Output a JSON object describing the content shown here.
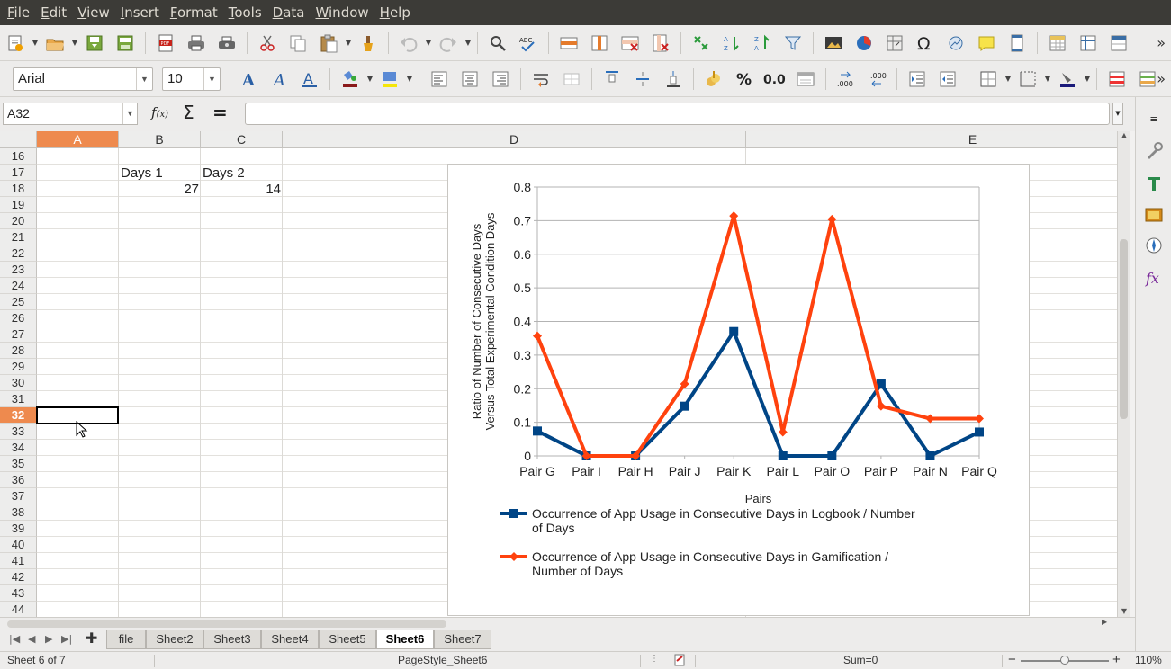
{
  "menu": {
    "items": [
      {
        "label": "File",
        "accel": "F",
        "rest": "ile"
      },
      {
        "label": "Edit",
        "accel": "E",
        "rest": "dit"
      },
      {
        "label": "View",
        "accel": "V",
        "rest": "iew"
      },
      {
        "label": "Insert",
        "accel": "I",
        "rest": "nsert"
      },
      {
        "label": "Format",
        "accel": "F",
        "rest": "ormat",
        "pre": ""
      },
      {
        "label": "Tools",
        "accel": "T",
        "rest": "ools"
      },
      {
        "label": "Data",
        "accel": "D",
        "rest": "ata"
      },
      {
        "label": "Window",
        "accel": "W",
        "rest": "indow"
      },
      {
        "label": "Help",
        "accel": "H",
        "rest": "elp"
      }
    ]
  },
  "format_toolbar": {
    "font_name": "Arial",
    "font_size": "10"
  },
  "formula_bar": {
    "name_box": "A32",
    "formula": "",
    "fx_icon": "function-wizard-icon",
    "sum_icon": "sum-icon",
    "equals": "="
  },
  "grid": {
    "columns": [
      "A",
      "B",
      "C",
      "D",
      "E"
    ],
    "selected_column": "A",
    "rows": [
      "16",
      "17",
      "18",
      "19",
      "20",
      "21",
      "22",
      "23",
      "24",
      "25",
      "26",
      "27",
      "28",
      "29",
      "30",
      "31",
      "32",
      "33",
      "34",
      "35",
      "36",
      "37",
      "38",
      "39",
      "40",
      "41",
      "42",
      "43",
      "44"
    ],
    "selected_row": "32",
    "cells": {
      "B17": "Days 1",
      "C17": "Days 2",
      "B18": "27",
      "C18": "14"
    }
  },
  "chart_data": {
    "type": "line",
    "categories": [
      "Pair G",
      "Pair I",
      "Pair H",
      "Pair J",
      "Pair K",
      "Pair L",
      "Pair O",
      "Pair P",
      "Pair N",
      "Pair Q"
    ],
    "series": [
      {
        "name": "Occurrence of App Usage in Consecutive Days in Logbook / Number of Days",
        "name_line1": "Occurrence of App Usage in Consecutive Days in Logbook / Number",
        "name_line2": "of Days",
        "color": "#004586",
        "marker": "square",
        "values": [
          0.074,
          0,
          0,
          0.148,
          0.37,
          0,
          0,
          0.214,
          0,
          0.071
        ]
      },
      {
        "name": "Occurrence of App Usage in Consecutive Days in Gamification / Number of Days",
        "name_line1": "Occurrence of App Usage in Consecutive Days in Gamification /",
        "name_line2": "Number of Days",
        "color": "#ff420e",
        "marker": "diamond",
        "values": [
          0.357,
          0,
          0,
          0.214,
          0.714,
          0.071,
          0.704,
          0.148,
          0.111,
          0.111
        ]
      }
    ],
    "xlabel": "Pairs",
    "ylabel_line1": "Ratio of Number of Consecutive Days",
    "ylabel_line2": "Versus Total Experimental Condition Days",
    "ylim": [
      0,
      0.8
    ],
    "yticks": [
      "0",
      "0.1",
      "0.2",
      "0.3",
      "0.4",
      "0.5",
      "0.6",
      "0.7",
      "0.8"
    ],
    "grid": true,
    "legend_position": "bottom"
  },
  "sheet_tabs": {
    "tabs": [
      "file",
      "Sheet2",
      "Sheet3",
      "Sheet4",
      "Sheet5",
      "Sheet6",
      "Sheet7"
    ],
    "active": "Sheet6"
  },
  "status": {
    "sheet_info": "Sheet 6 of 7",
    "page_style": "PageStyle_Sheet6",
    "sum": "Sum=0",
    "zoom": "110%",
    "zoom_minus": "−",
    "zoom_plus": "+"
  }
}
